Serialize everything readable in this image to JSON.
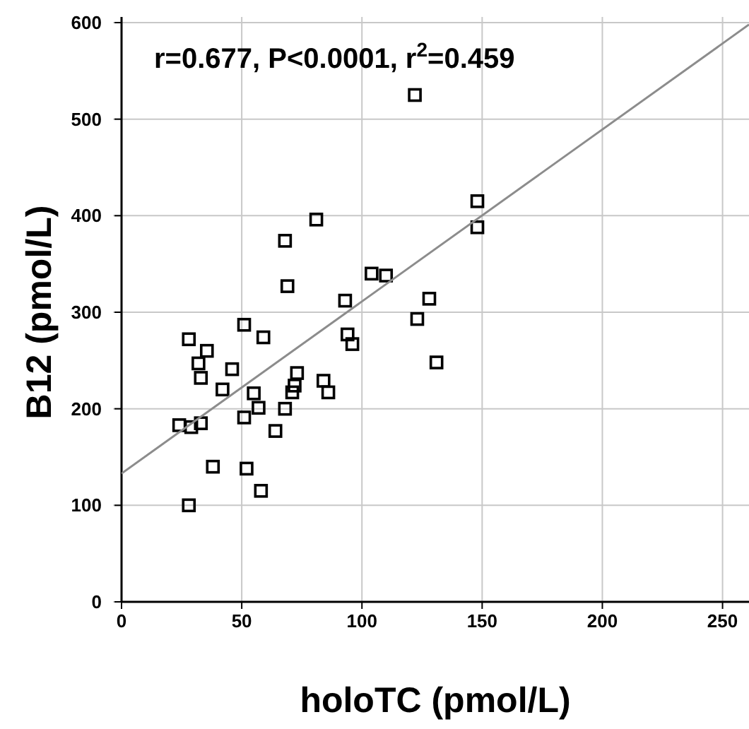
{
  "chart_data": {
    "type": "scatter",
    "xlabel": "holoTC (pmol/L)",
    "ylabel": "B12 (pmol/L)",
    "annotations": [
      "r=0.677, P<0.0001, r$^{2}$=0.459"
    ],
    "xlim": [
      0,
      261
    ],
    "ylim": [
      0,
      600
    ],
    "xticks": [
      0,
      50,
      100,
      150,
      200,
      250
    ],
    "yticks": [
      0,
      100,
      200,
      300,
      400,
      500,
      600
    ],
    "grid": true,
    "series": [
      {
        "color": "#000000",
        "marker": "square",
        "x": [
          28,
          51,
          59,
          35.5,
          32,
          33,
          46,
          42,
          55,
          57,
          51,
          68,
          64,
          73,
          72,
          71,
          84,
          86,
          94,
          96,
          24,
          29,
          33,
          38,
          52,
          58,
          28,
          81,
          68,
          69,
          104,
          110,
          93,
          128,
          123,
          131,
          122,
          148,
          148
        ],
        "values": [
          272,
          287,
          274,
          260,
          247,
          232,
          241,
          220,
          216,
          201,
          191,
          200,
          177,
          237,
          224,
          217,
          229,
          217,
          277,
          267,
          183,
          181,
          185,
          140,
          138,
          115,
          100,
          396,
          374,
          327,
          340,
          338,
          312,
          314,
          293,
          248,
          525,
          415,
          388
        ]
      },
      {
        "type": "line",
        "marker": "none",
        "color": "#8c8c8c",
        "x": [
          0,
          261
        ],
        "values": [
          133,
          598
        ]
      }
    ]
  }
}
